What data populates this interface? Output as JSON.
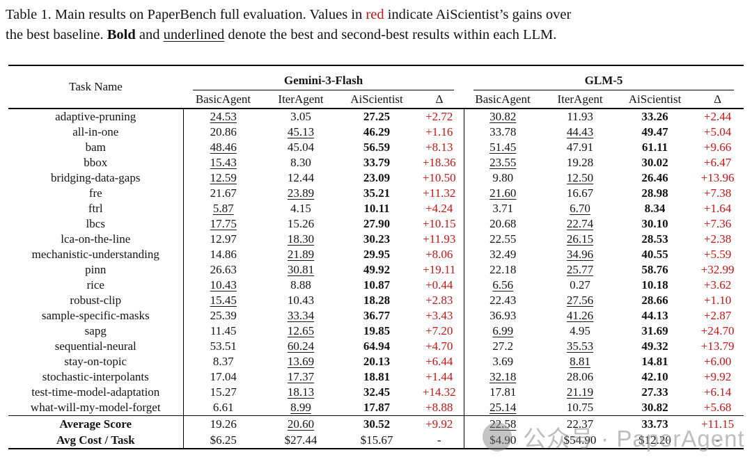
{
  "caption": {
    "line1_pre": "Table 1. Main results on PaperBench full evaluation. Values in ",
    "line1_red": "red",
    "line1_post": " indicate AiScientist’s gains over",
    "line2_pre": "the best baseline. ",
    "line2_bold": "Bold",
    "line2_mid": " and ",
    "line2_underlined": "underlined",
    "line2_post": " denote the best and second-best results within each LLM."
  },
  "table": {
    "task_header": "Task Name",
    "groups": [
      {
        "name": "Gemini-3-Flash",
        "cols": [
          "BasicAgent",
          "IterAgent",
          "AiScientist",
          "Δ"
        ]
      },
      {
        "name": "GLM-5",
        "cols": [
          "BasicAgent",
          "IterAgent",
          "AiScientist",
          "Δ"
        ]
      }
    ],
    "style_legend": {
      "u": "underlined (second-best)",
      "b": "bold (best)",
      "r": "red (gain)"
    },
    "rows": [
      {
        "name": "adaptive-pruning",
        "cells": [
          {
            "t": "24.53",
            "s": "u"
          },
          {
            "t": "3.05"
          },
          {
            "t": "27.25",
            "s": "b"
          },
          {
            "t": "+2.72",
            "s": "r"
          },
          {
            "t": "30.82",
            "s": "u"
          },
          {
            "t": "11.93"
          },
          {
            "t": "33.26",
            "s": "b"
          },
          {
            "t": "+2.44",
            "s": "r"
          }
        ]
      },
      {
        "name": "all-in-one",
        "cells": [
          {
            "t": "20.86"
          },
          {
            "t": "45.13",
            "s": "u"
          },
          {
            "t": "46.29",
            "s": "b"
          },
          {
            "t": "+1.16",
            "s": "r"
          },
          {
            "t": "33.78"
          },
          {
            "t": "44.43",
            "s": "u"
          },
          {
            "t": "49.47",
            "s": "b"
          },
          {
            "t": "+5.04",
            "s": "r"
          }
        ]
      },
      {
        "name": "bam",
        "cells": [
          {
            "t": "48.46",
            "s": "u"
          },
          {
            "t": "45.04"
          },
          {
            "t": "56.59",
            "s": "b"
          },
          {
            "t": "+8.13",
            "s": "r"
          },
          {
            "t": "51.45",
            "s": "u"
          },
          {
            "t": "47.91"
          },
          {
            "t": "61.11",
            "s": "b"
          },
          {
            "t": "+9.66",
            "s": "r"
          }
        ]
      },
      {
        "name": "bbox",
        "cells": [
          {
            "t": "15.43",
            "s": "u"
          },
          {
            "t": "8.30"
          },
          {
            "t": "33.79",
            "s": "b"
          },
          {
            "t": "+18.36",
            "s": "r"
          },
          {
            "t": "23.55",
            "s": "u"
          },
          {
            "t": "19.28"
          },
          {
            "t": "30.02",
            "s": "b"
          },
          {
            "t": "+6.47",
            "s": "r"
          }
        ]
      },
      {
        "name": "bridging-data-gaps",
        "cells": [
          {
            "t": "12.59",
            "s": "u"
          },
          {
            "t": "12.44"
          },
          {
            "t": "23.09",
            "s": "b"
          },
          {
            "t": "+10.50",
            "s": "r"
          },
          {
            "t": "9.80"
          },
          {
            "t": "12.50",
            "s": "u"
          },
          {
            "t": "26.46",
            "s": "b"
          },
          {
            "t": "+13.96",
            "s": "r"
          }
        ]
      },
      {
        "name": "fre",
        "cells": [
          {
            "t": "21.67"
          },
          {
            "t": "23.89",
            "s": "u"
          },
          {
            "t": "35.21",
            "s": "b"
          },
          {
            "t": "+11.32",
            "s": "r"
          },
          {
            "t": "21.60",
            "s": "u"
          },
          {
            "t": "16.67"
          },
          {
            "t": "28.98",
            "s": "b"
          },
          {
            "t": "+7.38",
            "s": "r"
          }
        ]
      },
      {
        "name": "ftrl",
        "cells": [
          {
            "t": "5.87",
            "s": "u"
          },
          {
            "t": "4.15"
          },
          {
            "t": "10.11",
            "s": "b"
          },
          {
            "t": "+4.24",
            "s": "r"
          },
          {
            "t": "3.71"
          },
          {
            "t": "6.70",
            "s": "u"
          },
          {
            "t": "8.34",
            "s": "b"
          },
          {
            "t": "+1.64",
            "s": "r"
          }
        ]
      },
      {
        "name": "lbcs",
        "cells": [
          {
            "t": "17.75",
            "s": "u"
          },
          {
            "t": "15.26"
          },
          {
            "t": "27.90",
            "s": "b"
          },
          {
            "t": "+10.15",
            "s": "r"
          },
          {
            "t": "20.68"
          },
          {
            "t": "22.74",
            "s": "u"
          },
          {
            "t": "30.10",
            "s": "b"
          },
          {
            "t": "+7.36",
            "s": "r"
          }
        ]
      },
      {
        "name": "lca-on-the-line",
        "cells": [
          {
            "t": "12.97"
          },
          {
            "t": "18.30",
            "s": "u"
          },
          {
            "t": "30.23",
            "s": "b"
          },
          {
            "t": "+11.93",
            "s": "r"
          },
          {
            "t": "22.55"
          },
          {
            "t": "26.15",
            "s": "u"
          },
          {
            "t": "28.53",
            "s": "b"
          },
          {
            "t": "+2.38",
            "s": "r"
          }
        ]
      },
      {
        "name": "mechanistic-understanding",
        "cells": [
          {
            "t": "14.86"
          },
          {
            "t": "21.89",
            "s": "u"
          },
          {
            "t": "29.95",
            "s": "b"
          },
          {
            "t": "+8.06",
            "s": "r"
          },
          {
            "t": "32.49"
          },
          {
            "t": "34.96",
            "s": "u"
          },
          {
            "t": "40.55",
            "s": "b"
          },
          {
            "t": "+5.59",
            "s": "r"
          }
        ]
      },
      {
        "name": "pinn",
        "cells": [
          {
            "t": "26.63"
          },
          {
            "t": "30.81",
            "s": "u"
          },
          {
            "t": "49.92",
            "s": "b"
          },
          {
            "t": "+19.11",
            "s": "r"
          },
          {
            "t": "22.18"
          },
          {
            "t": "25.77",
            "s": "u"
          },
          {
            "t": "58.76",
            "s": "b"
          },
          {
            "t": "+32.99",
            "s": "r"
          }
        ]
      },
      {
        "name": "rice",
        "cells": [
          {
            "t": "10.43",
            "s": "u"
          },
          {
            "t": "8.88"
          },
          {
            "t": "10.87",
            "s": "b"
          },
          {
            "t": "+0.44",
            "s": "r"
          },
          {
            "t": "6.56",
            "s": "u"
          },
          {
            "t": "0.27"
          },
          {
            "t": "10.18",
            "s": "b"
          },
          {
            "t": "+3.62",
            "s": "r"
          }
        ]
      },
      {
        "name": "robust-clip",
        "cells": [
          {
            "t": "15.45",
            "s": "u"
          },
          {
            "t": "10.43"
          },
          {
            "t": "18.28",
            "s": "b"
          },
          {
            "t": "+2.83",
            "s": "r"
          },
          {
            "t": "22.43"
          },
          {
            "t": "27.56",
            "s": "u"
          },
          {
            "t": "28.66",
            "s": "b"
          },
          {
            "t": "+1.10",
            "s": "r"
          }
        ]
      },
      {
        "name": "sample-specific-masks",
        "cells": [
          {
            "t": "25.39"
          },
          {
            "t": "33.34",
            "s": "u"
          },
          {
            "t": "36.77",
            "s": "b"
          },
          {
            "t": "+3.43",
            "s": "r"
          },
          {
            "t": "36.93"
          },
          {
            "t": "41.26",
            "s": "u"
          },
          {
            "t": "44.13",
            "s": "b"
          },
          {
            "t": "+2.87",
            "s": "r"
          }
        ]
      },
      {
        "name": "sapg",
        "cells": [
          {
            "t": "11.45"
          },
          {
            "t": "12.65",
            "s": "u"
          },
          {
            "t": "19.85",
            "s": "b"
          },
          {
            "t": "+7.20",
            "s": "r"
          },
          {
            "t": "6.99",
            "s": "u"
          },
          {
            "t": "4.95"
          },
          {
            "t": "31.69",
            "s": "b"
          },
          {
            "t": "+24.70",
            "s": "r"
          }
        ]
      },
      {
        "name": "sequential-neural",
        "cells": [
          {
            "t": "53.51"
          },
          {
            "t": "60.24",
            "s": "u"
          },
          {
            "t": "64.94",
            "s": "b"
          },
          {
            "t": "+4.70",
            "s": "r"
          },
          {
            "t": "27.2"
          },
          {
            "t": "35.53",
            "s": "u"
          },
          {
            "t": "49.32",
            "s": "b"
          },
          {
            "t": "+13.79",
            "s": "r"
          }
        ]
      },
      {
        "name": "stay-on-topic",
        "cells": [
          {
            "t": "8.37"
          },
          {
            "t": "13.69",
            "s": "u"
          },
          {
            "t": "20.13",
            "s": "b"
          },
          {
            "t": "+6.44",
            "s": "r"
          },
          {
            "t": "3.69"
          },
          {
            "t": "8.81",
            "s": "u"
          },
          {
            "t": "14.81",
            "s": "b"
          },
          {
            "t": "+6.00",
            "s": "r"
          }
        ]
      },
      {
        "name": "stochastic-interpolants",
        "cells": [
          {
            "t": "17.04"
          },
          {
            "t": "17.37",
            "s": "u"
          },
          {
            "t": "18.81",
            "s": "b"
          },
          {
            "t": "+1.44",
            "s": "r"
          },
          {
            "t": "32.18",
            "s": "u"
          },
          {
            "t": "28.06"
          },
          {
            "t": "42.10",
            "s": "b"
          },
          {
            "t": "+9.92",
            "s": "r"
          }
        ]
      },
      {
        "name": "test-time-model-adaptation",
        "cells": [
          {
            "t": "15.27"
          },
          {
            "t": "18.13",
            "s": "u"
          },
          {
            "t": "32.45",
            "s": "b"
          },
          {
            "t": "+14.32",
            "s": "r"
          },
          {
            "t": "17.81"
          },
          {
            "t": "21.19",
            "s": "u"
          },
          {
            "t": "27.33",
            "s": "b"
          },
          {
            "t": "+6.14",
            "s": "r"
          }
        ]
      },
      {
        "name": "what-will-my-model-forget",
        "cells": [
          {
            "t": "6.61"
          },
          {
            "t": "8.99",
            "s": "u"
          },
          {
            "t": "17.87",
            "s": "b"
          },
          {
            "t": "+8.88",
            "s": "r"
          },
          {
            "t": "25.14",
            "s": "u"
          },
          {
            "t": "10.75"
          },
          {
            "t": "30.82",
            "s": "b"
          },
          {
            "t": "+5.68",
            "s": "r"
          }
        ]
      }
    ],
    "footer": [
      {
        "name": "Average Score",
        "cells": [
          {
            "t": "19.26"
          },
          {
            "t": "20.60",
            "s": "u"
          },
          {
            "t": "30.52",
            "s": "b"
          },
          {
            "t": "+9.92",
            "s": "r"
          },
          {
            "t": "22.58",
            "s": "u"
          },
          {
            "t": "22.37"
          },
          {
            "t": "33.73",
            "s": "b"
          },
          {
            "t": "+11.15",
            "s": "r"
          }
        ]
      },
      {
        "name": "Avg Cost / Task",
        "cells": [
          {
            "t": "$6.25"
          },
          {
            "t": "$27.44"
          },
          {
            "t": "$15.67"
          },
          {
            "t": "-"
          },
          {
            "t": "$4.90"
          },
          {
            "t": "$54.90"
          },
          {
            "t": "$12.20"
          },
          {
            "t": "-"
          }
        ]
      }
    ]
  },
  "watermark": {
    "text": "公众号 · PaperAgent"
  },
  "colors": {
    "accent_red": "#cc1212",
    "text": "#141414",
    "watermark_gray": "#969696"
  }
}
